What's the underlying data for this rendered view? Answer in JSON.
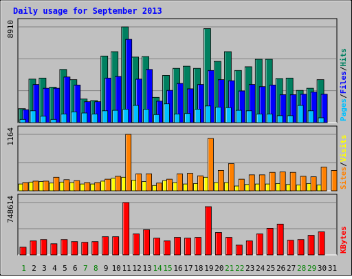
{
  "colors": {
    "frame_bg": "#c0c0c0",
    "plot_bg": "#c0c0c0",
    "grid": "#808080",
    "title": "#0000ff",
    "hits": "#008060",
    "files": "#0000ff",
    "pages": "#00c0ff",
    "visits": "#ffff00",
    "sites": "#ff8000",
    "kbytes": "#ff0000",
    "weekday_label": "#000080",
    "weekend_label": "#008000"
  },
  "chart_data": {
    "type": "bar",
    "title": "Daily usage for September 2013",
    "days": [
      "1",
      "2",
      "3",
      "4",
      "5",
      "6",
      "7",
      "8",
      "9",
      "10",
      "11",
      "12",
      "13",
      "14",
      "15",
      "16",
      "17",
      "18",
      "19",
      "20",
      "21",
      "22",
      "23",
      "24",
      "25",
      "26",
      "27",
      "28",
      "29",
      "30",
      "31"
    ],
    "weekend_days": [
      "1",
      "7",
      "8",
      "14",
      "15",
      "21",
      "22",
      "28",
      "29"
    ],
    "panels": [
      {
        "id": "traffic",
        "max_label": "8910",
        "ymax": 8910,
        "legend": [
          {
            "text": "Pages",
            "color": "#00c0ff"
          },
          {
            "text": "/",
            "color": "#000000"
          },
          {
            "text": "Files",
            "color": "#0000ff"
          },
          {
            "text": "/",
            "color": "#000000"
          },
          {
            "text": "Hits",
            "color": "#008060"
          }
        ],
        "series": [
          {
            "name": "Hits",
            "color": "#008060",
            "values": [
              1300,
              4050,
              4150,
              3300,
              4950,
              4000,
              2200,
              2050,
              6200,
              6600,
              8910,
              6100,
              6150,
              2350,
              4400,
              5050,
              5250,
              5050,
              8750,
              5700,
              6600,
              4850,
              5200,
              5900,
              5900,
              4100,
              4150,
              3000,
              3200,
              4000,
              0
            ]
          },
          {
            "name": "Files",
            "color": "#0000ff",
            "values": [
              1200,
              3550,
              3200,
              3200,
              4250,
              3500,
              1950,
              1950,
              4150,
              4300,
              7750,
              4050,
              4950,
              2000,
              3000,
              3650,
              3150,
              3550,
              4850,
              4000,
              3900,
              2950,
              3550,
              3350,
              3500,
              2600,
              2600,
              2650,
              2850,
              2650,
              0
            ]
          },
          {
            "name": "Pages",
            "color": "#00c0ff",
            "values": [
              300,
              1100,
              600,
              300,
              800,
              1000,
              900,
              800,
              1100,
              1150,
              1250,
              1600,
              1250,
              750,
              1750,
              800,
              850,
              1250,
              1550,
              1450,
              1400,
              1150,
              1100,
              800,
              800,
              650,
              650,
              1600,
              1100,
              450,
              0
            ]
          }
        ]
      },
      {
        "id": "visitors",
        "max_label": "1164",
        "ymax": 1164,
        "legend": [
          {
            "text": "Sites",
            "color": "#ff8000"
          },
          {
            "text": "/",
            "color": "#000000"
          },
          {
            "text": "Visits",
            "color": "#ffff00"
          }
        ],
        "series": [
          {
            "name": "Visits",
            "color": "#ffff00",
            "values": [
              140,
              180,
              190,
              160,
              180,
              170,
              140,
              140,
              200,
              260,
              280,
              220,
              190,
              110,
              210,
              170,
              140,
              150,
              280,
              170,
              170,
              100,
              130,
              140,
              140,
              150,
              130,
              120,
              150,
              120,
              0
            ]
          },
          {
            "name": "Sites",
            "color": "#ff8000",
            "values": [
              170,
              200,
              200,
              280,
              230,
              210,
              170,
              170,
              240,
              300,
              1164,
              350,
              350,
              160,
              240,
              350,
              360,
              310,
              1080,
              420,
              560,
              240,
              330,
              330,
              380,
              390,
              380,
              300,
              290,
              490,
              420
            ]
          }
        ]
      },
      {
        "id": "volume",
        "max_label": "748614",
        "ymax": 748614,
        "legend": [
          {
            "text": "KBytes",
            "color": "#ff0000"
          }
        ],
        "series": [
          {
            "name": "KBytes",
            "color": "#ff0000",
            "values": [
              110000,
              200000,
              220000,
              160000,
              220000,
              190000,
              180000,
              190000,
              260000,
              260000,
              748614,
              300000,
              360000,
              240000,
              200000,
              250000,
              240000,
              250000,
              690000,
              320000,
              250000,
              140000,
              200000,
              300000,
              380000,
              440000,
              210000,
              220000,
              280000,
              330000,
              0
            ]
          }
        ]
      }
    ]
  }
}
